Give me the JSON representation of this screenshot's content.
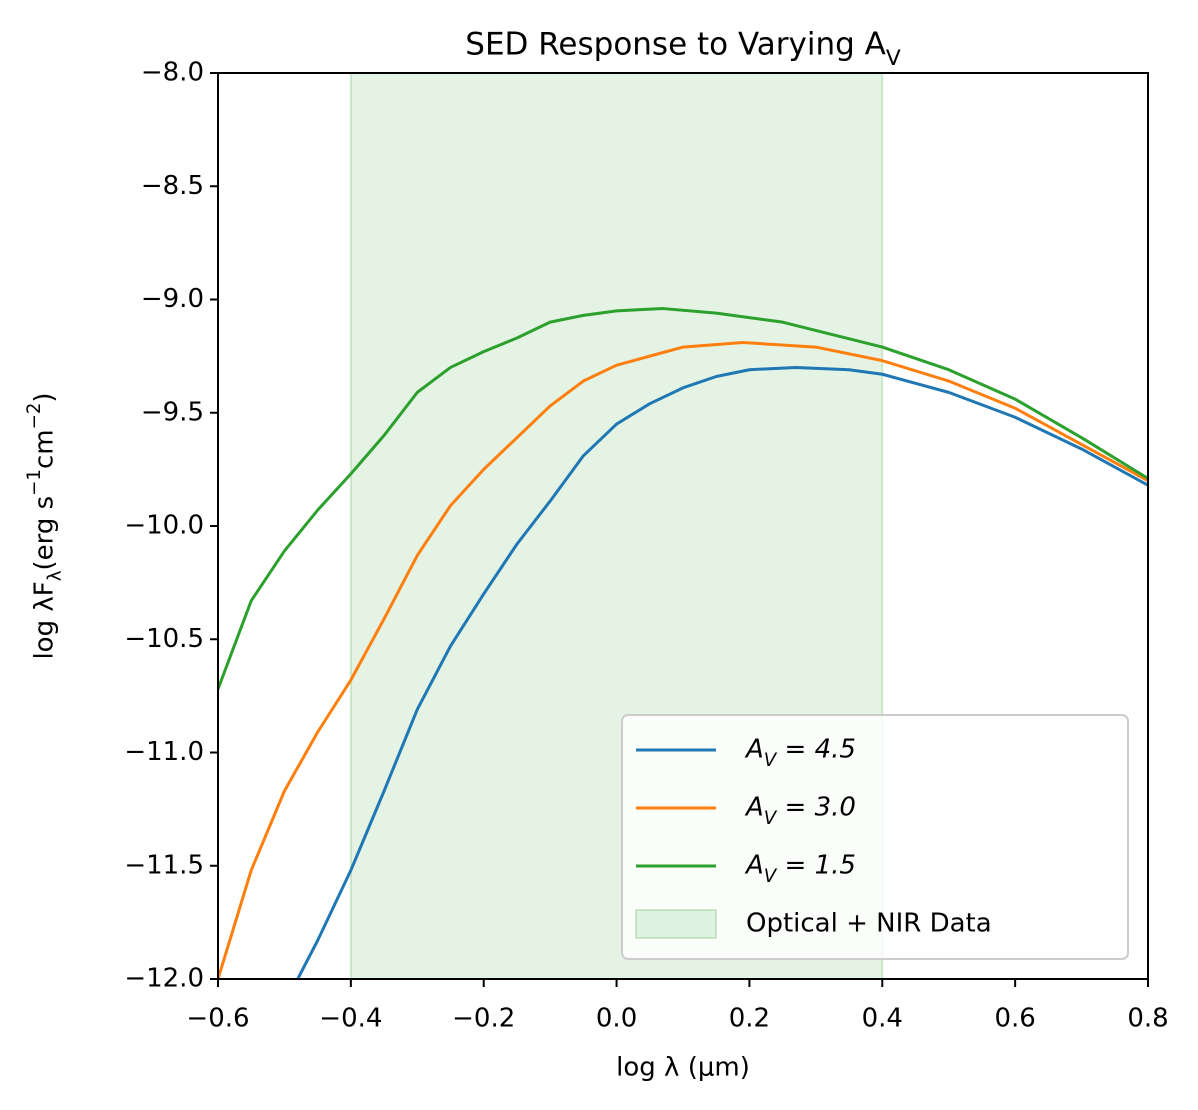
{
  "chart_data": {
    "type": "line",
    "title": "SED Response to Varying A_V",
    "x_label": "log λ (μm)",
    "y_label": "log λF_λ(erg  s^{−1}cm^{−2})",
    "xlim": [
      -0.6,
      0.8
    ],
    "ylim": [
      -12.0,
      -8.0
    ],
    "xticks": [
      {
        "value": -0.6,
        "label": "−0.6"
      },
      {
        "value": -0.4,
        "label": "−0.4"
      },
      {
        "value": -0.2,
        "label": "−0.2"
      },
      {
        "value": 0,
        "label": "0.0"
      },
      0.2,
      0.4,
      0.6,
      0.8
    ],
    "yticks": [
      {
        "value": -12,
        "label": "−12.0"
      },
      {
        "value": -11.5,
        "label": "−11.5"
      },
      {
        "value": -11,
        "label": "−11.0"
      },
      {
        "value": -10.5,
        "label": "−10.5"
      },
      {
        "value": -10,
        "label": "−10.0"
      },
      {
        "value": -9.5,
        "label": "−9.5"
      },
      {
        "value": -9,
        "label": "−9.0"
      },
      {
        "value": -8.5,
        "label": "−8.5"
      },
      {
        "value": -8,
        "label": "−8.0"
      }
    ],
    "legend": "lower right",
    "span": {
      "name": "Optical + NIR Data",
      "x": [
        -0.4,
        0.4
      ],
      "color": "#2ca02c"
    },
    "series": [
      {
        "name": "A_V = 4.5",
        "color": "#1f77b4",
        "x": [
          -0.48,
          -0.45,
          -0.4,
          -0.35,
          -0.3,
          -0.25,
          -0.2,
          -0.15,
          -0.1,
          -0.05,
          0,
          0.05,
          0.1,
          0.15,
          0.2,
          0.27,
          0.35,
          0.4,
          0.5,
          0.6,
          0.7,
          0.8
        ],
        "values": [
          -12.0,
          -11.83,
          -11.52,
          -11.17,
          -10.81,
          -10.53,
          -10.3,
          -10.08,
          -9.89,
          -9.69,
          -9.55,
          -9.46,
          -9.39,
          -9.34,
          -9.31,
          -9.3,
          -9.31,
          -9.33,
          -9.41,
          -9.52,
          -9.66,
          -9.82
        ]
      },
      {
        "name": "A_V = 3.0",
        "color": "#ff7f0e",
        "x": [
          -0.6,
          -0.55,
          -0.5,
          -0.45,
          -0.4,
          -0.35,
          -0.3,
          -0.25,
          -0.2,
          -0.15,
          -0.1,
          -0.05,
          0,
          0.05,
          0.1,
          0.19,
          0.3,
          0.4,
          0.5,
          0.6,
          0.7,
          0.8
        ],
        "values": [
          -12.0,
          -11.52,
          -11.17,
          -10.91,
          -10.68,
          -10.41,
          -10.13,
          -9.91,
          -9.75,
          -9.61,
          -9.47,
          -9.36,
          -9.29,
          -9.25,
          -9.21,
          -9.19,
          -9.21,
          -9.27,
          -9.36,
          -9.48,
          -9.64,
          -9.8
        ]
      },
      {
        "name": "A_V = 1.5",
        "color": "#2ca02c",
        "x": [
          -0.6,
          -0.55,
          -0.5,
          -0.45,
          -0.4,
          -0.35,
          -0.3,
          -0.25,
          -0.2,
          -0.15,
          -0.1,
          -0.05,
          0,
          0.07,
          0.15,
          0.25,
          0.4,
          0.5,
          0.6,
          0.7,
          0.8
        ],
        "values": [
          -10.72,
          -10.33,
          -10.11,
          -9.93,
          -9.77,
          -9.6,
          -9.41,
          -9.3,
          -9.23,
          -9.17,
          -9.1,
          -9.07,
          -9.05,
          -9.04,
          -9.06,
          -9.1,
          -9.21,
          -9.31,
          -9.44,
          -9.61,
          -9.79
        ]
      }
    ]
  }
}
